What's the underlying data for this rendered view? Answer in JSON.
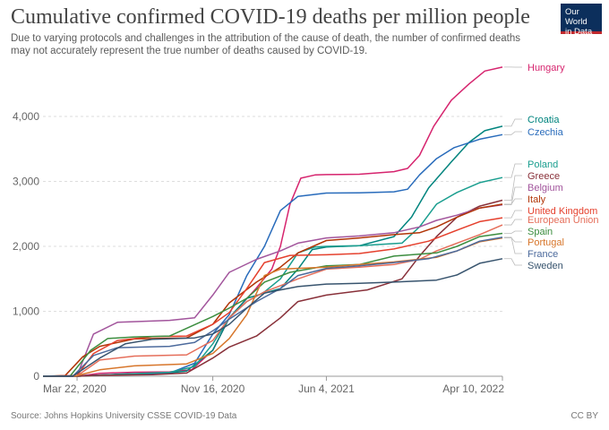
{
  "header": {
    "title": "Cumulative confirmed COVID-19 deaths per million people",
    "subtitle": "Due to varying protocols and challenges in the attribution of the cause of death, the number of confirmed deaths may not accurately represent the true number of deaths caused by COVID-19.",
    "logo_line1": "Our World",
    "logo_line2": "in Data",
    "logo_color": "#0c2f5c"
  },
  "footer": {
    "source": "Source: Johns Hopkins University CSSE COVID-19 Data",
    "license": "CC BY"
  },
  "chart_data": {
    "type": "line",
    "title": "Cumulative confirmed COVID-19 deaths per million people",
    "xlabel": "",
    "ylabel": "",
    "x_range": [
      "2020-01-22",
      "2022-04-10"
    ],
    "x_ticks": [
      "Mar 22, 2020",
      "Nov 16, 2020",
      "Jun 4, 2021",
      "Apr 10, 2022"
    ],
    "ylim": [
      0,
      4800
    ],
    "y_ticks": [
      0,
      1000,
      2000,
      3000,
      4000
    ],
    "y_tick_labels": [
      "0",
      "1,000",
      "2,000",
      "3,000",
      "4,000"
    ],
    "grid": "horizontal dashed",
    "legend": "right, labels at line ends",
    "series": [
      {
        "name": "Hungary",
        "color": "#d6246e",
        "points": [
          [
            "2020-01-22",
            0
          ],
          [
            "2020-03-22",
            0
          ],
          [
            "2020-05-01",
            45
          ],
          [
            "2020-07-01",
            62
          ],
          [
            "2020-09-01",
            68
          ],
          [
            "2020-10-10",
            100
          ],
          [
            "2020-11-16",
            400
          ],
          [
            "2020-12-15",
            900
          ],
          [
            "2021-01-31",
            1350
          ],
          [
            "2021-02-28",
            1650
          ],
          [
            "2021-03-15",
            2000
          ],
          [
            "2021-04-01",
            2650
          ],
          [
            "2021-04-20",
            3050
          ],
          [
            "2021-05-15",
            3100
          ],
          [
            "2021-06-04",
            3105
          ],
          [
            "2021-08-01",
            3110
          ],
          [
            "2021-10-01",
            3150
          ],
          [
            "2021-10-25",
            3200
          ],
          [
            "2021-11-15",
            3400
          ],
          [
            "2021-12-10",
            3850
          ],
          [
            "2022-01-10",
            4250
          ],
          [
            "2022-02-10",
            4500
          ],
          [
            "2022-03-10",
            4700
          ],
          [
            "2022-04-10",
            4760
          ]
        ]
      },
      {
        "name": "Croatia",
        "color": "#00847e",
        "points": [
          [
            "2020-01-22",
            0
          ],
          [
            "2020-03-22",
            0
          ],
          [
            "2020-05-01",
            20
          ],
          [
            "2020-08-01",
            28
          ],
          [
            "2020-10-01",
            80
          ],
          [
            "2020-11-16",
            400
          ],
          [
            "2020-12-15",
            900
          ],
          [
            "2021-01-15",
            1200
          ],
          [
            "2021-02-15",
            1280
          ],
          [
            "2021-03-15",
            1350
          ],
          [
            "2021-04-15",
            1650
          ],
          [
            "2021-05-10",
            1950
          ],
          [
            "2021-06-04",
            1990
          ],
          [
            "2021-08-01",
            2010
          ],
          [
            "2021-10-01",
            2150
          ],
          [
            "2021-11-01",
            2450
          ],
          [
            "2021-12-01",
            2900
          ],
          [
            "2022-01-10",
            3300
          ],
          [
            "2022-02-10",
            3600
          ],
          [
            "2022-03-10",
            3780
          ],
          [
            "2022-04-10",
            3850
          ]
        ]
      },
      {
        "name": "Czechia",
        "color": "#286bbb",
        "points": [
          [
            "2020-01-22",
            0
          ],
          [
            "2020-03-22",
            0
          ],
          [
            "2020-06-01",
            30
          ],
          [
            "2020-09-01",
            50
          ],
          [
            "2020-10-15",
            200
          ],
          [
            "2020-11-16",
            650
          ],
          [
            "2020-12-15",
            950
          ],
          [
            "2021-01-15",
            1550
          ],
          [
            "2021-02-15",
            2000
          ],
          [
            "2021-03-15",
            2550
          ],
          [
            "2021-04-15",
            2770
          ],
          [
            "2021-06-04",
            2820
          ],
          [
            "2021-08-01",
            2825
          ],
          [
            "2021-10-01",
            2840
          ],
          [
            "2021-10-25",
            2880
          ],
          [
            "2021-11-15",
            3100
          ],
          [
            "2021-12-15",
            3350
          ],
          [
            "2022-01-15",
            3520
          ],
          [
            "2022-03-01",
            3650
          ],
          [
            "2022-04-10",
            3720
          ]
        ]
      },
      {
        "name": "Poland",
        "color": "#1a9e8f",
        "points": [
          [
            "2020-01-22",
            0
          ],
          [
            "2020-03-22",
            0
          ],
          [
            "2020-06-01",
            30
          ],
          [
            "2020-09-01",
            60
          ],
          [
            "2020-10-15",
            150
          ],
          [
            "2020-11-16",
            500
          ],
          [
            "2020-12-15",
            900
          ],
          [
            "2021-01-15",
            1150
          ],
          [
            "2021-02-15",
            1300
          ],
          [
            "2021-03-15",
            1500
          ],
          [
            "2021-04-15",
            1900
          ],
          [
            "2021-05-15",
            1990
          ],
          [
            "2021-06-04",
            2000
          ],
          [
            "2021-08-01",
            2010
          ],
          [
            "2021-10-15",
            2050
          ],
          [
            "2021-11-15",
            2300
          ],
          [
            "2021-12-15",
            2650
          ],
          [
            "2022-01-20",
            2830
          ],
          [
            "2022-03-01",
            2980
          ],
          [
            "2022-04-10",
            3060
          ]
        ]
      },
      {
        "name": "Greece",
        "color": "#883039",
        "points": [
          [
            "2020-01-22",
            0
          ],
          [
            "2020-03-22",
            0
          ],
          [
            "2020-05-01",
            15
          ],
          [
            "2020-08-01",
            25
          ],
          [
            "2020-10-01",
            50
          ],
          [
            "2020-11-16",
            280
          ],
          [
            "2020-12-15",
            450
          ],
          [
            "2021-02-01",
            620
          ],
          [
            "2021-03-15",
            900
          ],
          [
            "2021-04-15",
            1150
          ],
          [
            "2021-06-04",
            1250
          ],
          [
            "2021-08-15",
            1330
          ],
          [
            "2021-10-15",
            1500
          ],
          [
            "2021-11-15",
            1850
          ],
          [
            "2021-12-15",
            2150
          ],
          [
            "2022-01-20",
            2450
          ],
          [
            "2022-03-01",
            2620
          ],
          [
            "2022-04-10",
            2710
          ]
        ]
      },
      {
        "name": "Belgium",
        "color": "#a2559c",
        "points": [
          [
            "2020-01-22",
            0
          ],
          [
            "2020-03-22",
            10
          ],
          [
            "2020-04-20",
            650
          ],
          [
            "2020-06-01",
            830
          ],
          [
            "2020-09-01",
            860
          ],
          [
            "2020-10-15",
            900
          ],
          [
            "2020-11-16",
            1250
          ],
          [
            "2020-12-15",
            1600
          ],
          [
            "2021-02-01",
            1800
          ],
          [
            "2021-03-15",
            1930
          ],
          [
            "2021-04-15",
            2050
          ],
          [
            "2021-06-04",
            2130
          ],
          [
            "2021-08-01",
            2160
          ],
          [
            "2021-10-01",
            2210
          ],
          [
            "2021-11-15",
            2300
          ],
          [
            "2021-12-15",
            2400
          ],
          [
            "2022-01-20",
            2480
          ],
          [
            "2022-03-01",
            2590
          ],
          [
            "2022-04-10",
            2640
          ]
        ]
      },
      {
        "name": "Italy",
        "color": "#b13507",
        "points": [
          [
            "2020-01-22",
            0
          ],
          [
            "2020-03-01",
            10
          ],
          [
            "2020-04-01",
            300
          ],
          [
            "2020-05-01",
            460
          ],
          [
            "2020-07-01",
            575
          ],
          [
            "2020-10-01",
            590
          ],
          [
            "2020-11-16",
            800
          ],
          [
            "2020-12-15",
            1130
          ],
          [
            "2021-02-01",
            1450
          ],
          [
            "2021-03-15",
            1680
          ],
          [
            "2021-04-15",
            1900
          ],
          [
            "2021-06-04",
            2090
          ],
          [
            "2021-08-01",
            2130
          ],
          [
            "2021-10-01",
            2180
          ],
          [
            "2021-11-15",
            2210
          ],
          [
            "2021-12-15",
            2300
          ],
          [
            "2022-01-20",
            2450
          ],
          [
            "2022-03-01",
            2590
          ],
          [
            "2022-04-10",
            2650
          ]
        ]
      },
      {
        "name": "United Kingdom",
        "color": "#e5402d",
        "points": [
          [
            "2020-01-22",
            0
          ],
          [
            "2020-03-22",
            10
          ],
          [
            "2020-04-20",
            350
          ],
          [
            "2020-06-01",
            550
          ],
          [
            "2020-08-01",
            610
          ],
          [
            "2020-10-01",
            620
          ],
          [
            "2020-11-16",
            800
          ],
          [
            "2020-12-15",
            980
          ],
          [
            "2021-01-15",
            1350
          ],
          [
            "2021-02-15",
            1750
          ],
          [
            "2021-04-01",
            1860
          ],
          [
            "2021-06-04",
            1870
          ],
          [
            "2021-08-01",
            1890
          ],
          [
            "2021-10-01",
            1960
          ],
          [
            "2021-12-01",
            2080
          ],
          [
            "2022-01-20",
            2250
          ],
          [
            "2022-03-01",
            2380
          ],
          [
            "2022-04-10",
            2440
          ]
        ]
      },
      {
        "name": "European Union",
        "color": "#e56e5a",
        "points": [
          [
            "2020-01-22",
            0
          ],
          [
            "2020-03-22",
            5
          ],
          [
            "2020-05-01",
            250
          ],
          [
            "2020-07-01",
            310
          ],
          [
            "2020-10-01",
            330
          ],
          [
            "2020-11-16",
            550
          ],
          [
            "2020-12-15",
            900
          ],
          [
            "2021-01-15",
            1150
          ],
          [
            "2021-02-15",
            1300
          ],
          [
            "2021-04-15",
            1500
          ],
          [
            "2021-06-04",
            1650
          ],
          [
            "2021-08-01",
            1680
          ],
          [
            "2021-10-01",
            1720
          ],
          [
            "2021-11-15",
            1800
          ],
          [
            "2021-12-15",
            1930
          ],
          [
            "2022-01-20",
            2050
          ],
          [
            "2022-03-01",
            2180
          ],
          [
            "2022-04-10",
            2330
          ]
        ]
      },
      {
        "name": "Spain",
        "color": "#3c8d3f",
        "points": [
          [
            "2020-01-22",
            0
          ],
          [
            "2020-03-10",
            5
          ],
          [
            "2020-04-15",
            400
          ],
          [
            "2020-05-15",
            580
          ],
          [
            "2020-07-01",
            605
          ],
          [
            "2020-09-01",
            620
          ],
          [
            "2020-11-16",
            920
          ],
          [
            "2020-12-15",
            1050
          ],
          [
            "2021-01-15",
            1200
          ],
          [
            "2021-02-15",
            1450
          ],
          [
            "2021-04-01",
            1600
          ],
          [
            "2021-06-04",
            1700
          ],
          [
            "2021-08-01",
            1720
          ],
          [
            "2021-10-01",
            1850
          ],
          [
            "2021-12-15",
            1900
          ],
          [
            "2022-01-20",
            2000
          ],
          [
            "2022-03-01",
            2150
          ],
          [
            "2022-04-10",
            2200
          ]
        ]
      },
      {
        "name": "Portugal",
        "color": "#d7762b",
        "points": [
          [
            "2020-01-22",
            0
          ],
          [
            "2020-03-20",
            5
          ],
          [
            "2020-05-01",
            100
          ],
          [
            "2020-07-01",
            160
          ],
          [
            "2020-10-01",
            190
          ],
          [
            "2020-11-16",
            350
          ],
          [
            "2020-12-15",
            580
          ],
          [
            "2021-01-15",
            950
          ],
          [
            "2021-02-15",
            1550
          ],
          [
            "2021-03-15",
            1650
          ],
          [
            "2021-06-04",
            1680
          ],
          [
            "2021-08-01",
            1720
          ],
          [
            "2021-10-01",
            1760
          ],
          [
            "2021-12-15",
            1830
          ],
          [
            "2022-01-20",
            1930
          ],
          [
            "2022-03-01",
            2070
          ],
          [
            "2022-04-10",
            2130
          ]
        ]
      },
      {
        "name": "France",
        "color": "#4c6a9c",
        "points": [
          [
            "2020-01-22",
            0
          ],
          [
            "2020-03-15",
            5
          ],
          [
            "2020-04-20",
            320
          ],
          [
            "2020-06-01",
            440
          ],
          [
            "2020-09-01",
            460
          ],
          [
            "2020-10-15",
            520
          ],
          [
            "2020-11-16",
            700
          ],
          [
            "2020-12-15",
            880
          ],
          [
            "2021-02-01",
            1150
          ],
          [
            "2021-03-15",
            1350
          ],
          [
            "2021-04-15",
            1550
          ],
          [
            "2021-06-04",
            1660
          ],
          [
            "2021-08-01",
            1700
          ],
          [
            "2021-10-01",
            1750
          ],
          [
            "2021-12-01",
            1810
          ],
          [
            "2022-01-20",
            1930
          ],
          [
            "2022-03-01",
            2080
          ],
          [
            "2022-04-10",
            2140
          ]
        ]
      },
      {
        "name": "Sweden",
        "color": "#38546e",
        "points": [
          [
            "2020-01-22",
            0
          ],
          [
            "2020-03-15",
            5
          ],
          [
            "2020-05-01",
            280
          ],
          [
            "2020-06-15",
            500
          ],
          [
            "2020-08-01",
            570
          ],
          [
            "2020-10-15",
            590
          ],
          [
            "2020-11-16",
            650
          ],
          [
            "2020-12-15",
            800
          ],
          [
            "2021-01-15",
            1050
          ],
          [
            "2021-02-15",
            1280
          ],
          [
            "2021-03-15",
            1330
          ],
          [
            "2021-04-15",
            1380
          ],
          [
            "2021-06-04",
            1420
          ],
          [
            "2021-08-01",
            1430
          ],
          [
            "2021-10-01",
            1450
          ],
          [
            "2021-12-15",
            1480
          ],
          [
            "2022-01-20",
            1560
          ],
          [
            "2022-03-01",
            1740
          ],
          [
            "2022-04-10",
            1810
          ]
        ]
      }
    ]
  }
}
